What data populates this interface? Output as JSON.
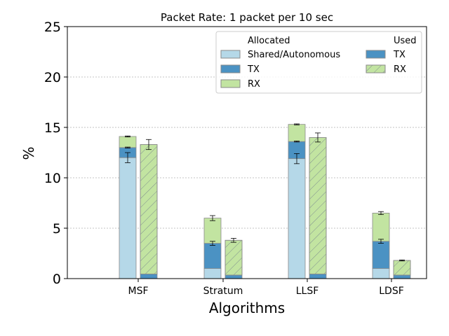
{
  "chart_data": {
    "type": "bar",
    "title": "Packet Rate: 1 packet per 10 sec",
    "xlabel": "Algorithms",
    "ylabel": "%",
    "categories": [
      "MSF",
      "Stratum",
      "LLSF",
      "LDSF"
    ],
    "ylim": [
      0,
      25
    ],
    "yticks": [
      0,
      5,
      10,
      15,
      20,
      25
    ],
    "grid": "horizontal dashed",
    "legend_position": "top-right",
    "legend": {
      "allocated_header": "Allocated",
      "used_header": "Used",
      "entries": [
        "Shared/Autonomous",
        "TX",
        "RX",
        "TX",
        "RX"
      ]
    },
    "allocated": {
      "shared_autonomous": [
        12.0,
        1.0,
        11.9,
        1.0
      ],
      "tx": [
        1.0,
        2.5,
        1.7,
        2.7
      ],
      "rx": [
        1.1,
        2.5,
        1.7,
        2.8
      ],
      "error_shared_autonomous": [
        0.5,
        0,
        0.5,
        0
      ],
      "error_total_tx": [
        0.05,
        0.2,
        0.05,
        0.2
      ],
      "error_total": [
        0.05,
        0.25,
        0.05,
        0.15
      ]
    },
    "used": {
      "tx": [
        0.45,
        0.35,
        0.45,
        0.35
      ],
      "rx": [
        12.85,
        3.45,
        13.55,
        1.45
      ],
      "error_total": [
        0.5,
        0.2,
        0.45,
        0.05
      ]
    },
    "colors": {
      "shared_autonomous": "#b5d8e8",
      "tx": "#4b92c3",
      "rx": "#c2e4a1",
      "hatch": "#7f8f8f",
      "grid": "#b0b0b0"
    }
  }
}
